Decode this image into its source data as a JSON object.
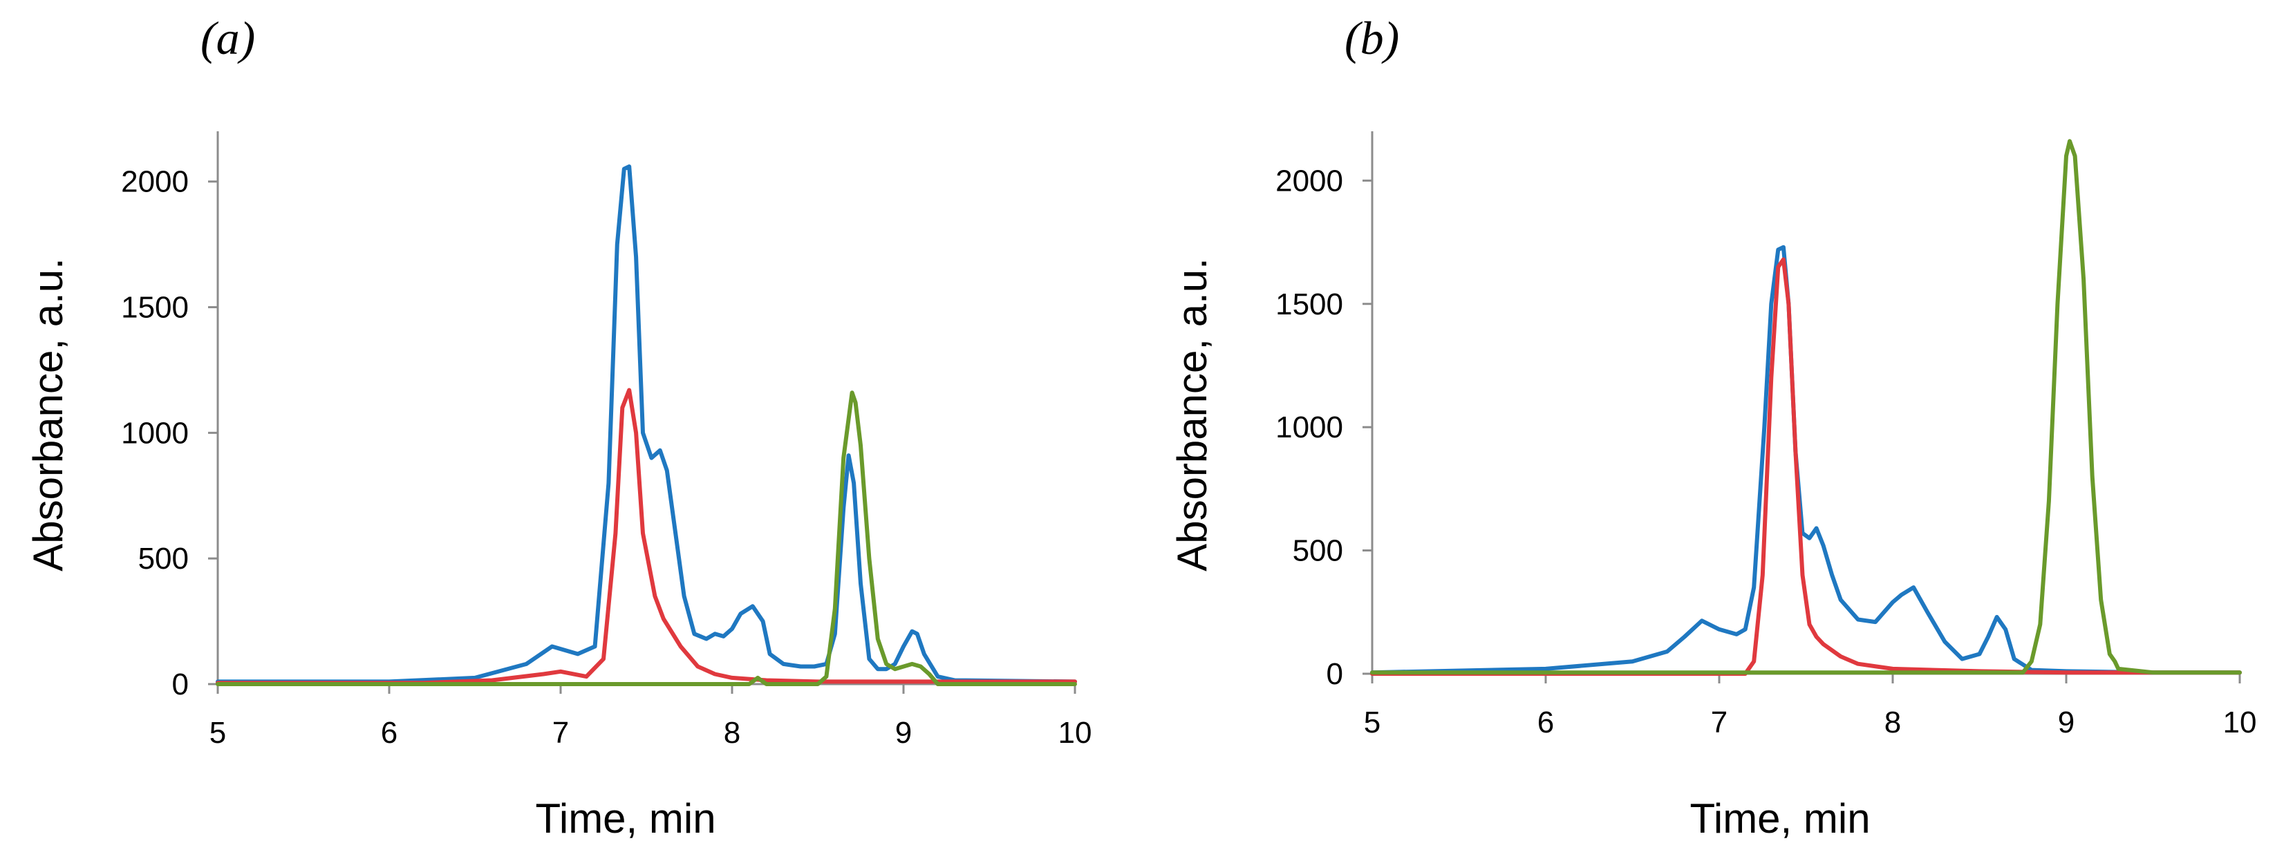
{
  "chart_data": [
    {
      "type": "line",
      "panel_label": "(a)",
      "title": "",
      "xlabel": "Time, min",
      "ylabel": "Absorbance, a.u.",
      "xlim": [
        5,
        10
      ],
      "ylim": [
        0,
        2200
      ],
      "xticks": [
        5,
        6,
        7,
        8,
        9,
        10
      ],
      "yticks": [
        0,
        500,
        1000,
        1500,
        2000
      ],
      "xtick_labels": [
        "5",
        "6",
        "7",
        "8",
        "9",
        "10"
      ],
      "ytick_labels": [
        "0",
        "500",
        "1000",
        "1500",
        "2000"
      ],
      "series": [
        {
          "name": "blue",
          "color": "#1f78c1",
          "x": [
            5.0,
            6.0,
            6.5,
            6.8,
            6.95,
            7.1,
            7.2,
            7.28,
            7.33,
            7.37,
            7.4,
            7.44,
            7.48,
            7.53,
            7.58,
            7.62,
            7.67,
            7.72,
            7.78,
            7.85,
            7.9,
            7.95,
            8.0,
            8.05,
            8.12,
            8.18,
            8.22,
            8.3,
            8.4,
            8.48,
            8.55,
            8.6,
            8.65,
            8.68,
            8.71,
            8.75,
            8.8,
            8.85,
            8.9,
            8.95,
            9.0,
            9.05,
            9.08,
            9.12,
            9.2,
            9.3,
            10.0
          ],
          "y": [
            10,
            10,
            25,
            80,
            150,
            120,
            150,
            800,
            1750,
            2050,
            2060,
            1700,
            1000,
            900,
            930,
            850,
            600,
            350,
            200,
            180,
            200,
            190,
            220,
            280,
            310,
            250,
            120,
            80,
            70,
            70,
            80,
            200,
            700,
            910,
            800,
            400,
            100,
            60,
            60,
            80,
            150,
            210,
            200,
            120,
            30,
            15,
            10
          ]
        },
        {
          "name": "red",
          "color": "#e0393e",
          "x": [
            5.0,
            6.2,
            6.6,
            6.9,
            7.0,
            7.15,
            7.25,
            7.32,
            7.36,
            7.4,
            7.44,
            7.48,
            7.55,
            7.6,
            7.7,
            7.8,
            7.9,
            8.0,
            8.2,
            8.5,
            9.0,
            10.0
          ],
          "y": [
            5,
            5,
            15,
            40,
            50,
            30,
            100,
            600,
            1100,
            1170,
            1000,
            600,
            350,
            260,
            150,
            70,
            40,
            25,
            15,
            10,
            10,
            10
          ]
        },
        {
          "name": "green",
          "color": "#6a9a2b",
          "x": [
            5.0,
            8.1,
            8.15,
            8.2,
            8.5,
            8.55,
            8.6,
            8.65,
            8.7,
            8.72,
            8.75,
            8.8,
            8.85,
            8.9,
            8.95,
            9.05,
            9.1,
            9.15,
            9.2,
            9.3,
            10.0
          ],
          "y": [
            0,
            0,
            25,
            0,
            0,
            30,
            300,
            900,
            1160,
            1120,
            950,
            500,
            180,
            80,
            60,
            80,
            70,
            40,
            0,
            0,
            0
          ]
        }
      ]
    },
    {
      "type": "line",
      "panel_label": "(b)",
      "title": "",
      "xlabel": "Time, min",
      "ylabel": "Absorbance, a.u.",
      "xlim": [
        5,
        10
      ],
      "ylim": [
        0,
        2200
      ],
      "xticks": [
        5,
        6,
        7,
        8,
        9,
        10
      ],
      "yticks": [
        0,
        500,
        1000,
        1500,
        2000
      ],
      "xtick_labels": [
        "5",
        "6",
        "7",
        "8",
        "9",
        "10"
      ],
      "ytick_labels": [
        "0",
        "500",
        "1000",
        "1500",
        "2000"
      ],
      "series": [
        {
          "name": "blue",
          "color": "#1f78c1",
          "x": [
            5.0,
            6.0,
            6.5,
            6.7,
            6.8,
            6.9,
            7.0,
            7.1,
            7.15,
            7.2,
            7.26,
            7.3,
            7.34,
            7.37,
            7.4,
            7.44,
            7.48,
            7.52,
            7.56,
            7.6,
            7.65,
            7.7,
            7.8,
            7.9,
            8.0,
            8.05,
            8.12,
            8.2,
            8.3,
            8.4,
            8.5,
            8.55,
            8.6,
            8.65,
            8.7,
            8.8,
            9.0,
            9.5,
            10.0
          ],
          "y": [
            5,
            20,
            50,
            90,
            150,
            215,
            180,
            160,
            180,
            350,
            1000,
            1500,
            1720,
            1730,
            1500,
            900,
            570,
            550,
            590,
            520,
            400,
            300,
            220,
            210,
            290,
            320,
            350,
            250,
            130,
            60,
            80,
            150,
            230,
            180,
            60,
            15,
            10,
            5,
            5
          ]
        },
        {
          "name": "red",
          "color": "#e0393e",
          "x": [
            5.0,
            7.15,
            7.2,
            7.25,
            7.3,
            7.34,
            7.37,
            7.4,
            7.44,
            7.48,
            7.52,
            7.56,
            7.6,
            7.7,
            7.8,
            8.0,
            8.5,
            9.0,
            10.0
          ],
          "y": [
            0,
            0,
            50,
            400,
            1200,
            1650,
            1680,
            1500,
            900,
            400,
            200,
            150,
            120,
            70,
            40,
            20,
            10,
            5,
            5
          ]
        },
        {
          "name": "green",
          "color": "#6a9a2b",
          "x": [
            5.0,
            8.75,
            8.8,
            8.85,
            8.9,
            8.95,
            9.0,
            9.02,
            9.05,
            9.1,
            9.15,
            9.2,
            9.25,
            9.28,
            9.3,
            9.5,
            10.0
          ],
          "y": [
            5,
            5,
            50,
            200,
            700,
            1500,
            2100,
            2160,
            2100,
            1600,
            800,
            300,
            80,
            50,
            20,
            5,
            5
          ]
        }
      ]
    }
  ]
}
